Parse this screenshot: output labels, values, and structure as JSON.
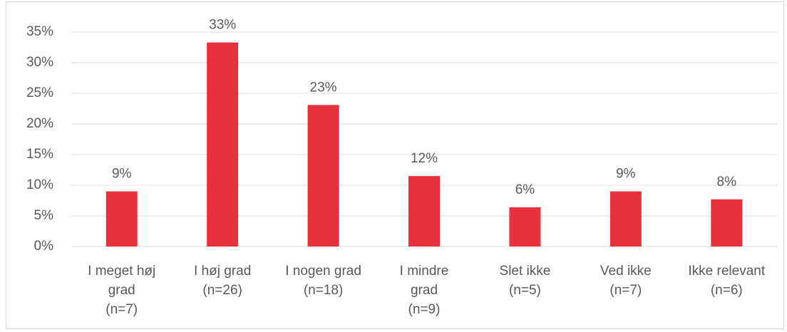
{
  "chart_data": {
    "type": "bar",
    "categories": [
      "I meget høj\ngrad\n(n=7)",
      "I høj grad\n(n=26)",
      "I nogen grad\n(n=18)",
      "I mindre\ngrad\n(n=9)",
      "Slet ikke\n(n=5)",
      "Ved ikke\n(n=7)",
      "Ikke relevant\n(n=6)"
    ],
    "values": [
      9,
      33.3,
      23.1,
      11.5,
      6.4,
      9,
      7.7
    ],
    "value_labels": [
      "9%",
      "33%",
      "23%",
      "12%",
      "6%",
      "9%",
      "8%"
    ],
    "color": "#e5323e",
    "ylim": [
      0,
      35
    ],
    "yticks": [
      {
        "value": 0,
        "label": "0%"
      },
      {
        "value": 5,
        "label": "5%"
      },
      {
        "value": 10,
        "label": "10%"
      },
      {
        "value": 15,
        "label": "15%"
      },
      {
        "value": 20,
        "label": "20%"
      },
      {
        "value": 25,
        "label": "25%"
      },
      {
        "value": 30,
        "label": "30%"
      },
      {
        "value": 35,
        "label": "35%"
      }
    ],
    "grid": true
  }
}
